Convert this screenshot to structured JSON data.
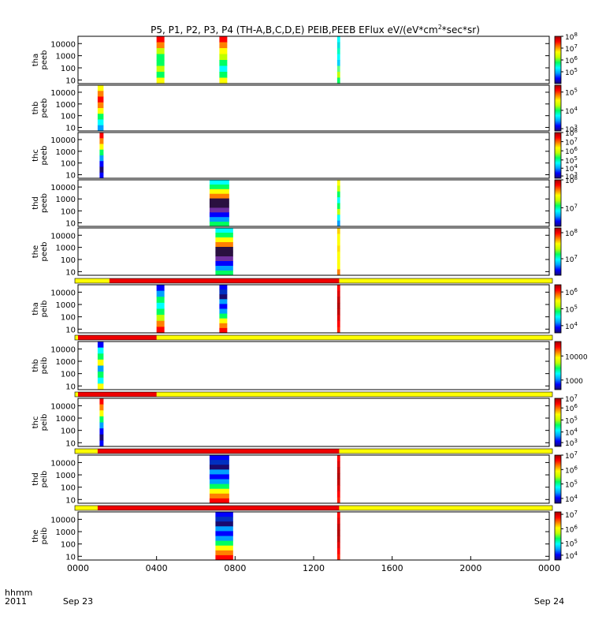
{
  "title_parts": [
    "P5, P1, P2, P3, P4 (TH-A,B,C,D,E) PEIB,PEEB EFlux eV/(eV*cm",
    "2",
    "*sec*sr)"
  ],
  "time_axis": {
    "row1_label": "hhmm",
    "row2_label": "2011",
    "start_date": "Sep 23",
    "end_date": "Sep 24",
    "range_hours": [
      0,
      24
    ],
    "ticks": [
      {
        "hour": 0,
        "label": "0000"
      },
      {
        "hour": 4,
        "label": "0400"
      },
      {
        "hour": 8,
        "label": "0800"
      },
      {
        "hour": 12,
        "label": "1200"
      },
      {
        "hour": 16,
        "label": "1600"
      },
      {
        "hour": 20,
        "label": "2000"
      },
      {
        "hour": 24,
        "label": "0000"
      }
    ]
  },
  "colors": {
    "flag_red": "#ee0000",
    "flag_yellow": "#ffff00",
    "colormap": [
      "#1a0a6e",
      "#0000ff",
      "#00a0ff",
      "#00ffff",
      "#00ff60",
      "#c0ff00",
      "#ffff00",
      "#ff8000",
      "#ff0000",
      "#a00000"
    ],
    "dark_core": "#2a1040"
  },
  "chart_data": {
    "type": "heatmap",
    "yrange": [
      5,
      40000
    ],
    "y_scale": "log",
    "y_ticks": [
      "10",
      "100",
      "1000",
      "10000"
    ],
    "panels": [
      {
        "ylabel": [
          "tha",
          "peeb"
        ],
        "cbar": {
          "ticks": [
            "10^8",
            "10^7",
            "10^6",
            "10^5"
          ],
          "tick_fracs": [
            0.0,
            0.25,
            0.5,
            0.75
          ]
        },
        "blocks": [
          {
            "t0": 4.0,
            "t1": 4.4,
            "pattern": "green_red"
          },
          {
            "t0": 7.2,
            "t1": 7.6,
            "pattern": "rainbow"
          },
          {
            "t0": 13.2,
            "t1": 13.35,
            "pattern": "cyan"
          }
        ]
      },
      {
        "ylabel": [
          "thb",
          "peeb"
        ],
        "cbar": {
          "ticks": [
            "10^5",
            "10^4",
            "10^3"
          ],
          "tick_fracs": [
            0.15,
            0.55,
            0.95
          ]
        },
        "blocks": [
          {
            "t0": 1.0,
            "t1": 1.3,
            "pattern": "orange_core"
          }
        ]
      },
      {
        "ylabel": [
          "thc",
          "peeb"
        ],
        "cbar": {
          "ticks": [
            "10^8",
            "10^7",
            "10^6",
            "10^5",
            "10^4",
            "10^3"
          ],
          "tick_fracs": [
            0.0,
            0.2,
            0.4,
            0.6,
            0.78,
            0.95
          ]
        },
        "blocks": [
          {
            "t0": 1.1,
            "t1": 1.3,
            "pattern": "blue_red"
          }
        ]
      },
      {
        "ylabel": [
          "thd",
          "peeb"
        ],
        "cbar": {
          "ticks": [
            "10^8",
            "10^7"
          ],
          "tick_fracs": [
            0.0,
            0.6
          ]
        },
        "blocks": [
          {
            "t0": 6.7,
            "t1": 7.7,
            "pattern": "dark_core"
          },
          {
            "t0": 13.2,
            "t1": 13.35,
            "pattern": "yellow_cyan"
          }
        ]
      },
      {
        "ylabel": [
          "the",
          "peeb"
        ],
        "cbar": {
          "ticks": [
            "10^8",
            "10^7"
          ],
          "tick_fracs": [
            0.1,
            0.65
          ]
        },
        "blocks": [
          {
            "t0": 7.0,
            "t1": 7.9,
            "pattern": "dark_core"
          },
          {
            "t0": 13.2,
            "t1": 13.35,
            "pattern": "yellow"
          }
        ]
      },
      {
        "ylabel": [
          "tha",
          "peib"
        ],
        "cbar": {
          "ticks": [
            "10^6",
            "10^5",
            "10^4"
          ],
          "tick_fracs": [
            0.15,
            0.5,
            0.85
          ]
        },
        "flag": {
          "red": [
            1.6,
            13.3
          ]
        },
        "blocks": [
          {
            "t0": 4.0,
            "t1": 4.4,
            "pattern": "ion_green"
          },
          {
            "t0": 7.2,
            "t1": 7.6,
            "pattern": "ion_blue"
          },
          {
            "t0": 13.2,
            "t1": 13.35,
            "pattern": "red"
          }
        ]
      },
      {
        "ylabel": [
          "thb",
          "peib"
        ],
        "cbar": {
          "ticks": [
            "10000",
            "1000"
          ],
          "tick_fracs": [
            0.3,
            0.8
          ]
        },
        "flag": {
          "red": [
            0.0,
            4.0
          ]
        },
        "blocks": [
          {
            "t0": 1.0,
            "t1": 1.3,
            "pattern": "speckle"
          }
        ]
      },
      {
        "ylabel": [
          "thc",
          "peib"
        ],
        "cbar": {
          "ticks": [
            "10^7",
            "10^6",
            "10^5",
            "10^4",
            "10^3"
          ],
          "tick_fracs": [
            0.0,
            0.2,
            0.45,
            0.7,
            0.92
          ]
        },
        "flag": {
          "red": [
            0.0,
            4.0
          ]
        },
        "blocks": [
          {
            "t0": 1.1,
            "t1": 1.3,
            "pattern": "blue_red"
          }
        ]
      },
      {
        "ylabel": [
          "thd",
          "peib"
        ],
        "cbar": {
          "ticks": [
            "10^7",
            "10^6",
            "10^5",
            "10^4"
          ],
          "tick_fracs": [
            0.0,
            0.3,
            0.6,
            0.9
          ]
        },
        "flag": {
          "red": [
            1.0,
            13.3
          ]
        },
        "blocks": [
          {
            "t0": 6.7,
            "t1": 7.7,
            "pattern": "ion_blue"
          },
          {
            "t0": 13.2,
            "t1": 13.35,
            "pattern": "red"
          }
        ]
      },
      {
        "ylabel": [
          "the",
          "peib"
        ],
        "cbar": {
          "ticks": [
            "10^7",
            "10^6",
            "10^5",
            "10^4"
          ],
          "tick_fracs": [
            0.05,
            0.35,
            0.65,
            0.9
          ]
        },
        "flag": {
          "red": [
            1.0,
            13.3
          ]
        },
        "blocks": [
          {
            "t0": 7.0,
            "t1": 7.9,
            "pattern": "ion_blue"
          },
          {
            "t0": 13.2,
            "t1": 13.35,
            "pattern": "red"
          }
        ]
      }
    ]
  }
}
